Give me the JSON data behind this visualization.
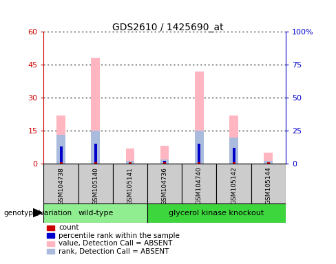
{
  "title": "GDS2610 / 1425690_at",
  "samples": [
    "GSM104738",
    "GSM105140",
    "GSM105141",
    "GSM104736",
    "GSM104740",
    "GSM105142",
    "GSM105144"
  ],
  "num_wild_type": 3,
  "absent_value_bars": [
    22,
    48,
    7,
    8,
    42,
    22,
    5
  ],
  "absent_rank_bars": [
    22,
    25,
    2,
    3,
    25,
    20,
    2
  ],
  "count_values": [
    0.5,
    0.5,
    0.5,
    0.5,
    0.5,
    0.5,
    0.5
  ],
  "rank_values": [
    13,
    15,
    1,
    2,
    15,
    12,
    1
  ],
  "ylim_left": [
    0,
    60
  ],
  "ylim_right": [
    0,
    100
  ],
  "yticks_left": [
    0,
    15,
    30,
    45,
    60
  ],
  "yticks_right": [
    0,
    25,
    50,
    75,
    100
  ],
  "ytick_labels_left": [
    "0",
    "15",
    "30",
    "45",
    "60"
  ],
  "ytick_labels_right": [
    "0",
    "25",
    "50",
    "75",
    "100%"
  ],
  "group1_label": "wild-type",
  "group2_label": "glycerol kinase knockout",
  "group1_color": "#90EE90",
  "group2_color": "#3DD63D",
  "group_label_text": "genotype/variation",
  "legend_items": [
    {
      "label": "count",
      "color": "#CC0000"
    },
    {
      "label": "percentile rank within the sample",
      "color": "#0000CC"
    },
    {
      "label": "value, Detection Call = ABSENT",
      "color": "#FFB6C1"
    },
    {
      "label": "rank, Detection Call = ABSENT",
      "color": "#AABBDD"
    }
  ],
  "bar_color_absent_value": "#FFB6C1",
  "bar_color_absent_rank": "#AABBDD",
  "bar_color_count": "#CC0000",
  "bar_color_rank": "#0000CC",
  "thin_bar_width": 0.08,
  "wide_bar_width": 0.25,
  "sample_bg_color": "#CCCCCC",
  "left_axis_color": "#CC0000",
  "right_axis_color": "#0000CC"
}
